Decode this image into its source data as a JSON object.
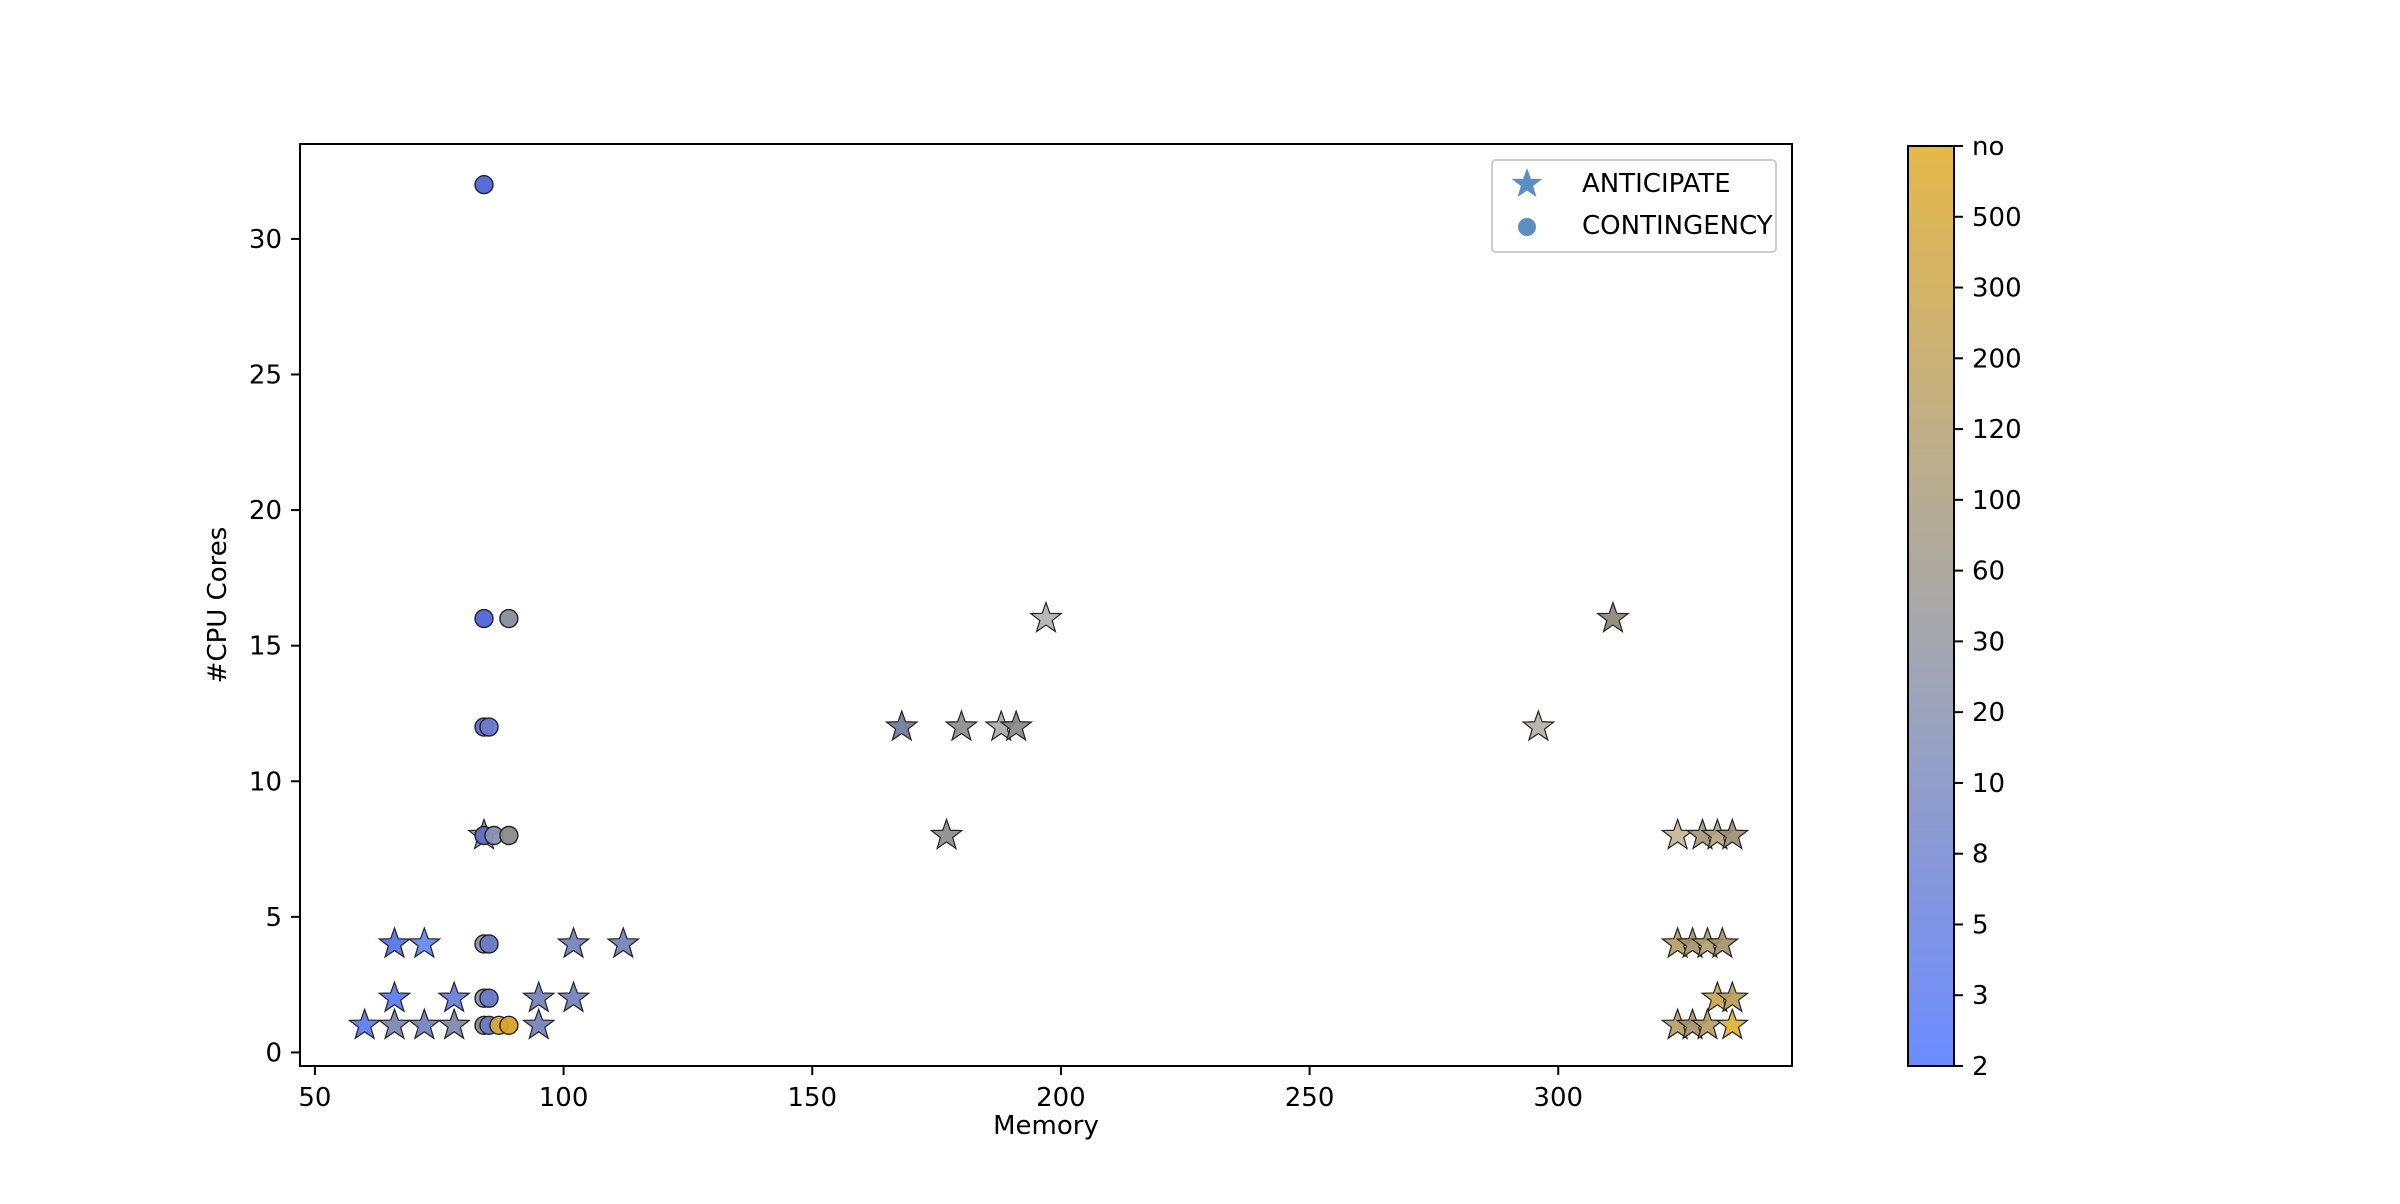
{
  "chart_data": {
    "type": "scatter",
    "xlabel": "Memory",
    "ylabel": "#CPU Cores",
    "xlim": [
      47,
      347
    ],
    "ylim": [
      -0.5,
      33.5
    ],
    "x_ticks": [
      50,
      100,
      150,
      200,
      250,
      300
    ],
    "y_ticks": [
      0,
      5,
      10,
      15,
      20,
      25,
      30
    ],
    "grid": false,
    "legend_position": "top-right",
    "legend": [
      {
        "label": "ANTICIPATE",
        "marker": "star"
      },
      {
        "label": "CONTINGENCY",
        "marker": "circle"
      }
    ],
    "colorbar": {
      "labels": [
        "2",
        "3",
        "5",
        "8",
        "10",
        "20",
        "30",
        "60",
        "100",
        "120",
        "200",
        "300",
        "500",
        "no"
      ],
      "color_low": "#6b8cff",
      "color_mid": "#a9a9a9",
      "color_high": "#e6b84a"
    },
    "series": [
      {
        "name": "ANTICIPATE",
        "marker": "star",
        "points": [
          {
            "x": 60,
            "y": 1,
            "color": "#5577f0"
          },
          {
            "x": 66,
            "y": 1,
            "color": "#7a82a8"
          },
          {
            "x": 72,
            "y": 1,
            "color": "#6f7cb8"
          },
          {
            "x": 78,
            "y": 1,
            "color": "#7a82a8"
          },
          {
            "x": 95,
            "y": 1,
            "color": "#6f7cb8"
          },
          {
            "x": 66,
            "y": 2,
            "color": "#5577f0"
          },
          {
            "x": 78,
            "y": 2,
            "color": "#5f7ad8"
          },
          {
            "x": 95,
            "y": 2,
            "color": "#6f7cb8"
          },
          {
            "x": 102,
            "y": 2,
            "color": "#6f7cb8"
          },
          {
            "x": 66,
            "y": 4,
            "color": "#4f6fe8"
          },
          {
            "x": 72,
            "y": 4,
            "color": "#5f84f0"
          },
          {
            "x": 102,
            "y": 4,
            "color": "#6f7cb8"
          },
          {
            "x": 112,
            "y": 4,
            "color": "#6f7cb8"
          },
          {
            "x": 84,
            "y": 8,
            "color": "#8a97c6"
          },
          {
            "x": 168,
            "y": 12,
            "color": "#6a7498"
          },
          {
            "x": 180,
            "y": 12,
            "color": "#8a8a8a"
          },
          {
            "x": 188,
            "y": 12,
            "color": "#a8a8a8"
          },
          {
            "x": 191,
            "y": 12,
            "color": "#858585"
          },
          {
            "x": 177,
            "y": 8,
            "color": "#8a8a8a"
          },
          {
            "x": 197,
            "y": 16,
            "color": "#b0b0b0"
          },
          {
            "x": 296,
            "y": 12,
            "color": "#b2aea4"
          },
          {
            "x": 311,
            "y": 16,
            "color": "#8a8275"
          },
          {
            "x": 324,
            "y": 8,
            "color": "#c2b593"
          },
          {
            "x": 329,
            "y": 8,
            "color": "#a39575"
          },
          {
            "x": 332,
            "y": 8,
            "color": "#b4a27a"
          },
          {
            "x": 335,
            "y": 8,
            "color": "#9a8c70"
          },
          {
            "x": 324,
            "y": 4,
            "color": "#b49c63"
          },
          {
            "x": 327,
            "y": 4,
            "color": "#a28f66"
          },
          {
            "x": 330,
            "y": 4,
            "color": "#b39e6c"
          },
          {
            "x": 333,
            "y": 4,
            "color": "#a28f66"
          },
          {
            "x": 332,
            "y": 2,
            "color": "#caa24e"
          },
          {
            "x": 335,
            "y": 2,
            "color": "#b89a58"
          },
          {
            "x": 324,
            "y": 1,
            "color": "#b49c63"
          },
          {
            "x": 327,
            "y": 1,
            "color": "#a28f66"
          },
          {
            "x": 330,
            "y": 1,
            "color": "#b49c63"
          },
          {
            "x": 335,
            "y": 1,
            "color": "#e0ad2e"
          }
        ]
      },
      {
        "name": "CONTINGENCY",
        "marker": "circle",
        "points": [
          {
            "x": 84,
            "y": 32,
            "color": "#4f64d8"
          },
          {
            "x": 84,
            "y": 16,
            "color": "#4f64d8"
          },
          {
            "x": 89,
            "y": 16,
            "color": "#888c9c"
          },
          {
            "x": 84,
            "y": 12,
            "color": "#5770d8"
          },
          {
            "x": 85,
            "y": 12,
            "color": "#6a7ac8"
          },
          {
            "x": 84,
            "y": 8,
            "color": "#5f70c0"
          },
          {
            "x": 86,
            "y": 8,
            "color": "#8a92b4"
          },
          {
            "x": 89,
            "y": 8,
            "color": "#8a8a8a"
          },
          {
            "x": 84,
            "y": 4,
            "color": "#8a92b4"
          },
          {
            "x": 85,
            "y": 4,
            "color": "#6a7ac8"
          },
          {
            "x": 84,
            "y": 2,
            "color": "#8a92b4"
          },
          {
            "x": 85,
            "y": 2,
            "color": "#6a7ac8"
          },
          {
            "x": 84,
            "y": 1,
            "color": "#8a8a8a"
          },
          {
            "x": 85,
            "y": 1,
            "color": "#6a7ac8"
          },
          {
            "x": 87,
            "y": 1,
            "color": "#d7a83a"
          },
          {
            "x": 89,
            "y": 1,
            "color": "#d9a127"
          }
        ]
      }
    ]
  }
}
